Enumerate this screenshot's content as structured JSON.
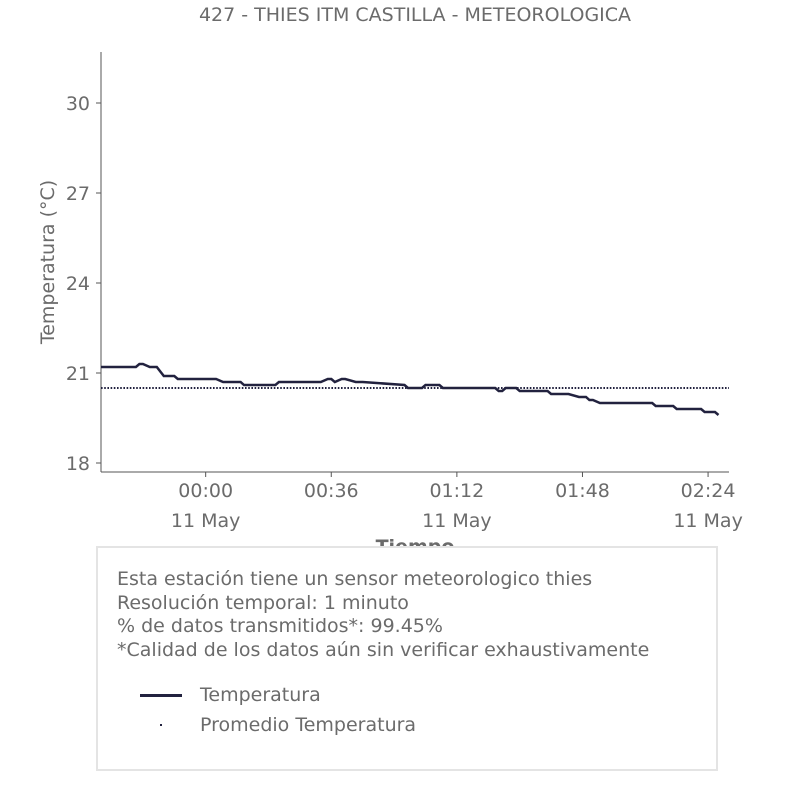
{
  "chart_data": {
    "type": "line",
    "title": "427 - THIES ITM CASTILLA - METEOROLOGICA",
    "ylabel": "Temperatura (°C)",
    "xlabel": "Tiempo",
    "ylim": [
      17.7,
      31.7
    ],
    "yticks": [
      18,
      21,
      24,
      27,
      30
    ],
    "x_unit": "minutes relative to 11 May 00:00",
    "xlim": [
      -30,
      150
    ],
    "xticks": [
      {
        "x": 0,
        "time": "00:00",
        "date": "11 May"
      },
      {
        "x": 36,
        "time": "00:36",
        "date": ""
      },
      {
        "x": 72,
        "time": "01:12",
        "date": "11 May"
      },
      {
        "x": 108,
        "time": "01:48",
        "date": ""
      },
      {
        "x": 144,
        "time": "02:24",
        "date": "11 May"
      }
    ],
    "grid": false,
    "series": [
      {
        "name": "Temperatura",
        "color": "#22223f",
        "style": "solid",
        "x": [
          -30,
          -29,
          -20,
          -19,
          -18,
          -16,
          -14,
          -12,
          -9,
          -8,
          3,
          5,
          10,
          11,
          20,
          21,
          33,
          35,
          36,
          37,
          39,
          40,
          43,
          45,
          57,
          58,
          62,
          63,
          67,
          68,
          83,
          84,
          85,
          86,
          89,
          90,
          92,
          93,
          95,
          96,
          98,
          99,
          102,
          104,
          107,
          109,
          110,
          111,
          113,
          116,
          128,
          129,
          134,
          135,
          142,
          143,
          146,
          147
        ],
        "y": [
          21.2,
          21.2,
          21.2,
          21.3,
          21.3,
          21.2,
          21.2,
          20.9,
          20.9,
          20.8,
          20.8,
          20.7,
          20.7,
          20.6,
          20.6,
          20.7,
          20.7,
          20.8,
          20.8,
          20.7,
          20.8,
          20.8,
          20.7,
          20.7,
          20.6,
          20.5,
          20.5,
          20.6,
          20.6,
          20.5,
          20.5,
          20.4,
          20.4,
          20.5,
          20.5,
          20.4,
          20.4,
          20.4,
          20.4,
          20.4,
          20.4,
          20.3,
          20.3,
          20.3,
          20.2,
          20.2,
          20.1,
          20.1,
          20.0,
          20.0,
          20.0,
          19.9,
          19.9,
          19.8,
          19.8,
          19.7,
          19.7,
          19.6
        ]
      },
      {
        "name": "Promedio Temperatura",
        "color": "#22223f",
        "style": "dotted",
        "x": [
          -30,
          150
        ],
        "y": [
          20.5,
          20.5
        ]
      }
    ]
  },
  "info": {
    "line1": "Esta estación tiene un sensor meteorologico thies",
    "line2": "Resolución temporal: 1 minuto",
    "line3": "% de datos transmitidos*: 99.45%",
    "line4": "*Calidad de los datos aún sin verificar exhaustivamente"
  },
  "legend": [
    {
      "label": "Temperatura"
    },
    {
      "label": "Promedio Temperatura"
    }
  ]
}
